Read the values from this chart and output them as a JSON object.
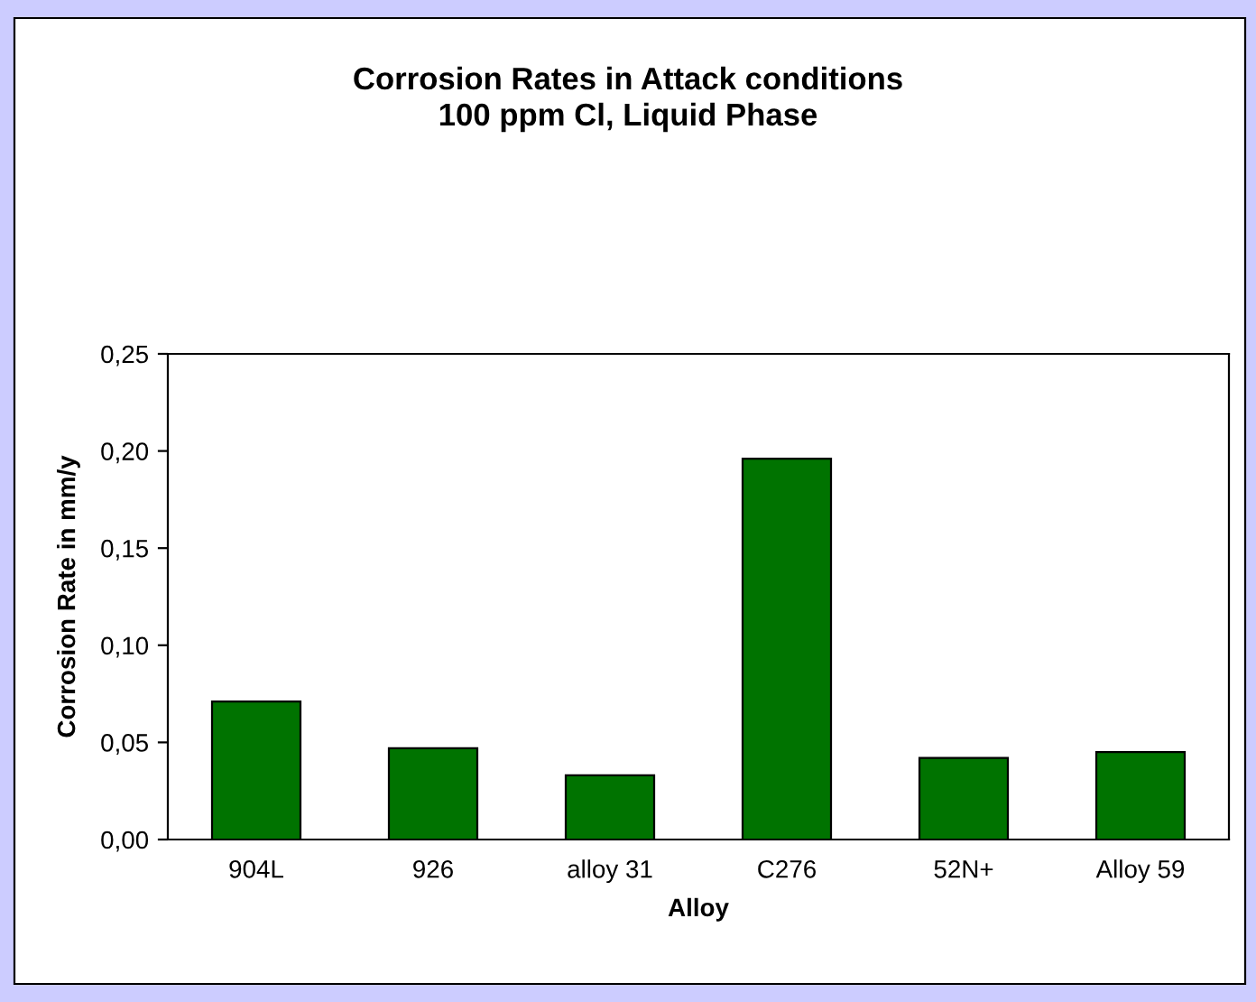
{
  "chart_data": {
    "type": "bar",
    "title": "Corrosion Rates in Attack conditions\n100 ppm Cl, Liquid Phase",
    "xlabel": "Alloy",
    "ylabel": "Corrosion Rate in mm/y",
    "categories": [
      "904L",
      "926",
      "alloy 31",
      "C276",
      "52N+",
      "Alloy 59"
    ],
    "values": [
      0.071,
      0.047,
      0.033,
      0.196,
      0.042,
      0.045
    ],
    "color": "#007300",
    "ylim": [
      0,
      0.25
    ],
    "yticks": [
      {
        "value": 0,
        "label": "0,00"
      },
      {
        "value": 0.05,
        "label": "0,05"
      },
      {
        "value": 0.1,
        "label": "0,10"
      },
      {
        "value": 0.15,
        "label": "0,15"
      },
      {
        "value": 0.2,
        "label": "0,20"
      },
      {
        "value": 0.25,
        "label": "0,25"
      }
    ],
    "grid": false,
    "legend": false
  }
}
